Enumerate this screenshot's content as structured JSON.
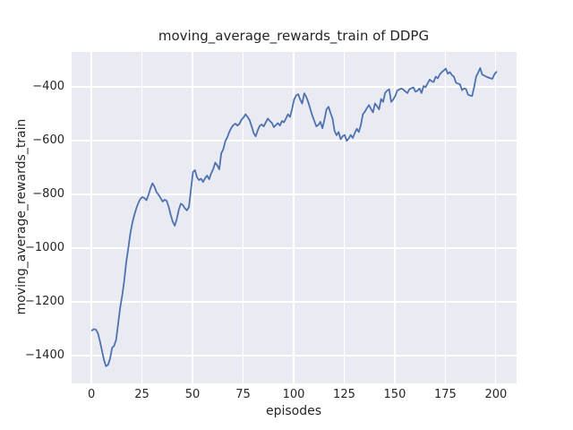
{
  "chart_data": {
    "type": "line",
    "title": "moving_average_rewards_train of DDPG",
    "xlabel": "episodes",
    "ylabel": "moving_average_rewards_train",
    "series_name": "moving average rewards (train) DDPG",
    "x": {
      "start": 0,
      "end": 200,
      "step": 1
    },
    "y": [
      -1305,
      -1300,
      -1302,
      -1315,
      -1345,
      -1380,
      -1415,
      -1438,
      -1433,
      -1410,
      -1370,
      -1362,
      -1340,
      -1280,
      -1220,
      -1175,
      -1120,
      -1050,
      -1000,
      -945,
      -905,
      -875,
      -850,
      -830,
      -815,
      -808,
      -812,
      -820,
      -800,
      -775,
      -757,
      -770,
      -790,
      -800,
      -812,
      -825,
      -818,
      -822,
      -845,
      -875,
      -900,
      -915,
      -890,
      -855,
      -833,
      -838,
      -850,
      -858,
      -845,
      -780,
      -715,
      -708,
      -735,
      -745,
      -740,
      -752,
      -738,
      -728,
      -742,
      -720,
      -704,
      -680,
      -690,
      -705,
      -645,
      -630,
      -600,
      -585,
      -565,
      -550,
      -540,
      -535,
      -542,
      -535,
      -520,
      -512,
      -500,
      -510,
      -522,
      -545,
      -570,
      -582,
      -560,
      -543,
      -538,
      -545,
      -530,
      -516,
      -525,
      -532,
      -548,
      -540,
      -533,
      -542,
      -525,
      -530,
      -515,
      -500,
      -510,
      -480,
      -445,
      -430,
      -425,
      -445,
      -460,
      -422,
      -435,
      -455,
      -480,
      -505,
      -525,
      -545,
      -540,
      -528,
      -552,
      -520,
      -482,
      -472,
      -495,
      -516,
      -562,
      -578,
      -566,
      -593,
      -582,
      -577,
      -599,
      -590,
      -577,
      -588,
      -570,
      -554,
      -566,
      -540,
      -500,
      -490,
      -477,
      -466,
      -480,
      -493,
      -460,
      -470,
      -482,
      -443,
      -454,
      -420,
      -412,
      -407,
      -454,
      -445,
      -432,
      -412,
      -408,
      -404,
      -408,
      -415,
      -421,
      -407,
      -403,
      -400,
      -416,
      -412,
      -404,
      -421,
      -395,
      -399,
      -385,
      -371,
      -377,
      -380,
      -360,
      -366,
      -352,
      -343,
      -337,
      -330,
      -349,
      -343,
      -354,
      -360,
      -382,
      -386,
      -388,
      -410,
      -404,
      -406,
      -427,
      -430,
      -432,
      -399,
      -360,
      -345,
      -328,
      -352,
      -356,
      -360,
      -363,
      -366,
      -368,
      -352,
      -342
    ],
    "xlim": [
      -10,
      210
    ],
    "ylim": [
      -1502,
      -268
    ],
    "xticks": [
      0,
      25,
      50,
      75,
      100,
      125,
      150,
      175,
      200
    ],
    "yticks": [
      -400,
      -600,
      -800,
      -1000,
      -1200,
      -1400
    ],
    "grid": true,
    "legend": "none",
    "style": {
      "line_color": "#4c72b0",
      "line_width": 1.8,
      "plot_background": "#eaeaf2",
      "grid_color": "#ffffff",
      "text_color": "#262626",
      "figure_background": "#ffffff"
    }
  }
}
